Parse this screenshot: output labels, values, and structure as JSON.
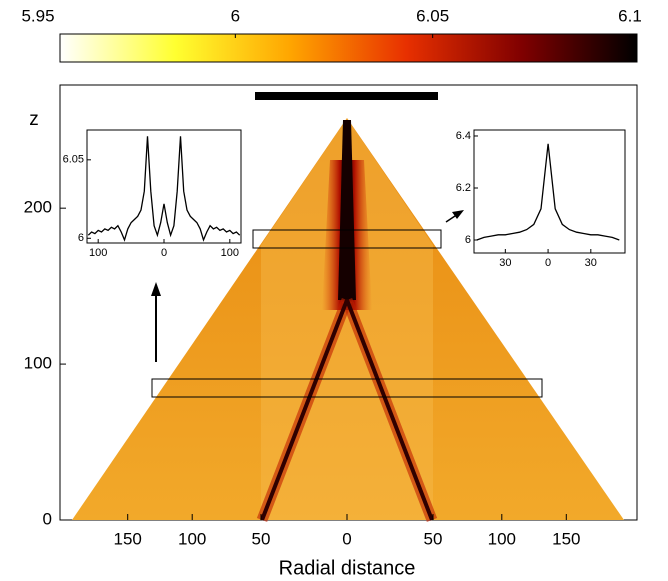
{
  "chart_data": [
    {
      "type": "heatmap",
      "xlabel": "Radial distance",
      "ylabel": "z",
      "xlim": [
        -202,
        205
      ],
      "ylim": [
        0,
        279
      ],
      "xticks": [
        {
          "value": -150,
          "label": "150"
        },
        {
          "value": -100,
          "label": "100"
        },
        {
          "value": -50,
          "label": "50"
        },
        0,
        50,
        100,
        150
      ],
      "yticks": [
        0,
        100,
        200
      ],
      "colorbar": {
        "lim": [
          5.95,
          6.1
        ],
        "ticks": [
          5.95,
          6,
          6.05,
          6.1
        ],
        "colors": [
          "#ffffff",
          "#ffff30",
          "#ffa500",
          "#e83000",
          "#800000",
          "#000000"
        ]
      }
    },
    {
      "type": "line",
      "color": "#000000",
      "xlim": [
        -117,
        117
      ],
      "ylim": [
        5.997,
        6.069
      ],
      "xticks": [
        {
          "value": -100,
          "label": "100"
        },
        0,
        100
      ],
      "yticks": [
        6,
        6.05
      ],
      "x": [
        -115,
        -110,
        -105,
        -100,
        -95,
        -90,
        -85,
        -80,
        -75,
        -70,
        -65,
        -60,
        -55,
        -50,
        -45,
        -40,
        -35,
        -30,
        -25,
        -20,
        -15,
        -10,
        -5,
        0,
        5,
        10,
        15,
        20,
        25,
        30,
        35,
        40,
        45,
        50,
        55,
        60,
        65,
        70,
        75,
        80,
        85,
        90,
        95,
        100,
        105,
        110,
        115
      ],
      "values": [
        6.002,
        6.004,
        6.003,
        6.005,
        6.004,
        6.006,
        6.005,
        6.007,
        6.006,
        6.008,
        6.004,
        5.999,
        6.006,
        6.01,
        6.012,
        6.014,
        6.018,
        6.03,
        6.065,
        6.03,
        6.008,
        6.002,
        6.01,
        6.022,
        6.01,
        6.002,
        6.008,
        6.03,
        6.065,
        6.03,
        6.018,
        6.014,
        6.012,
        6.01,
        6.006,
        5.999,
        6.004,
        6.008,
        6.006,
        6.007,
        6.005,
        6.006,
        6.004,
        6.005,
        6.003,
        6.004,
        6.002
      ]
    },
    {
      "type": "line",
      "color": "#000000",
      "xlim": [
        -52,
        54
      ],
      "ylim": [
        5.95,
        6.423
      ],
      "xticks": [
        {
          "value": -30,
          "label": "30"
        },
        0,
        30
      ],
      "yticks": [
        6,
        6.2,
        6.4
      ],
      "x": [
        -50,
        -45,
        -40,
        -35,
        -30,
        -25,
        -20,
        -15,
        -10,
        -5,
        0,
        5,
        10,
        15,
        20,
        25,
        30,
        35,
        40,
        45,
        50
      ],
      "values": [
        6.0,
        6.01,
        6.015,
        6.02,
        6.02,
        6.025,
        6.03,
        6.04,
        6.06,
        6.12,
        6.37,
        6.12,
        6.06,
        6.04,
        6.03,
        6.025,
        6.02,
        6.02,
        6.015,
        6.01,
        6.0
      ]
    }
  ]
}
